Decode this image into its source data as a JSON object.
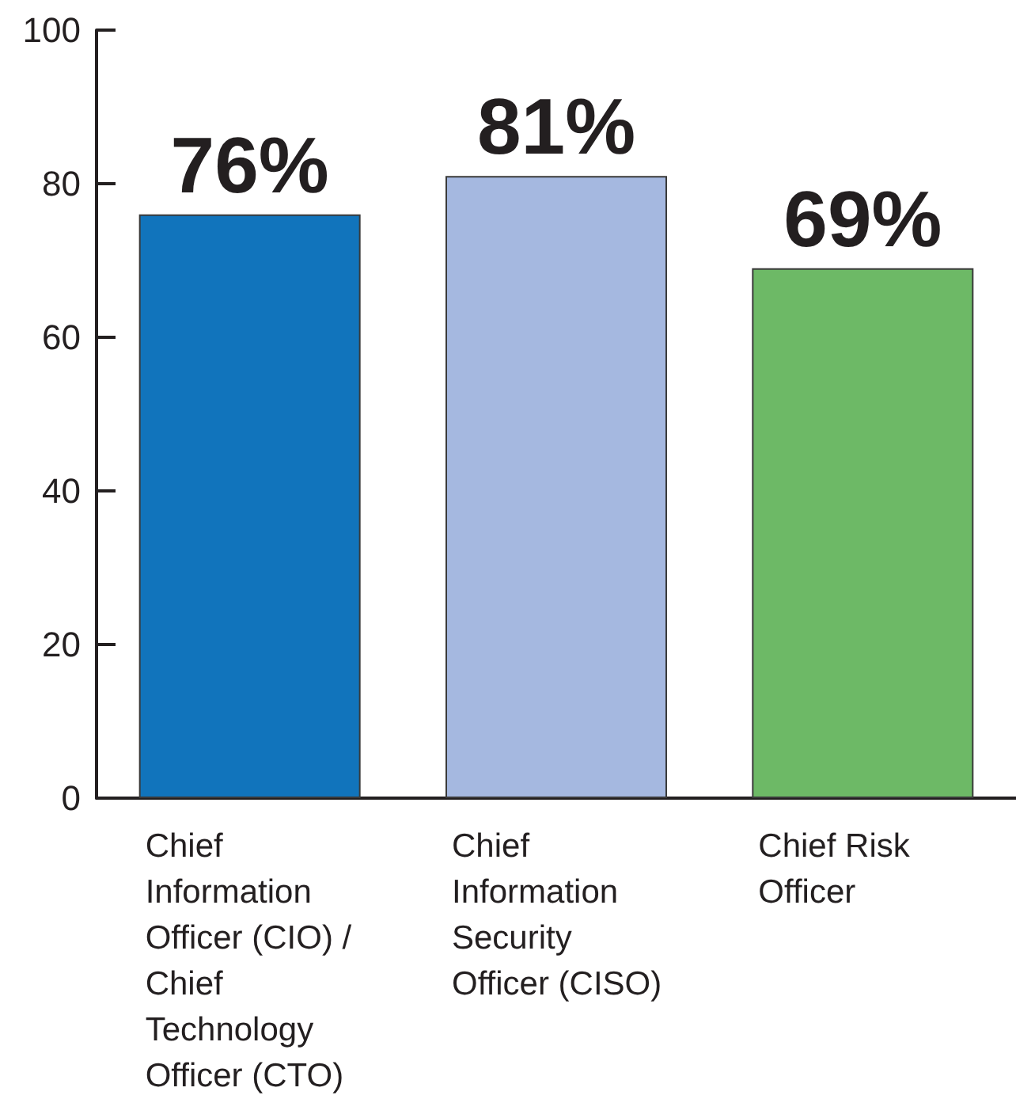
{
  "chart_data": {
    "type": "bar",
    "categories": [
      "Chief Information Officer (CIO) / Chief Technology Officer (CTO)",
      "Chief Information Security Officer (CISO)",
      "Chief Risk Officer"
    ],
    "values": [
      76,
      81,
      69
    ],
    "colors": [
      "#1174bc",
      "#a5b8e0",
      "#6db966"
    ],
    "ylim": [
      0,
      100
    ],
    "yticks": [
      0,
      20,
      40,
      60,
      80,
      100
    ],
    "value_labels": [
      "76%",
      "81%",
      "69%"
    ]
  }
}
